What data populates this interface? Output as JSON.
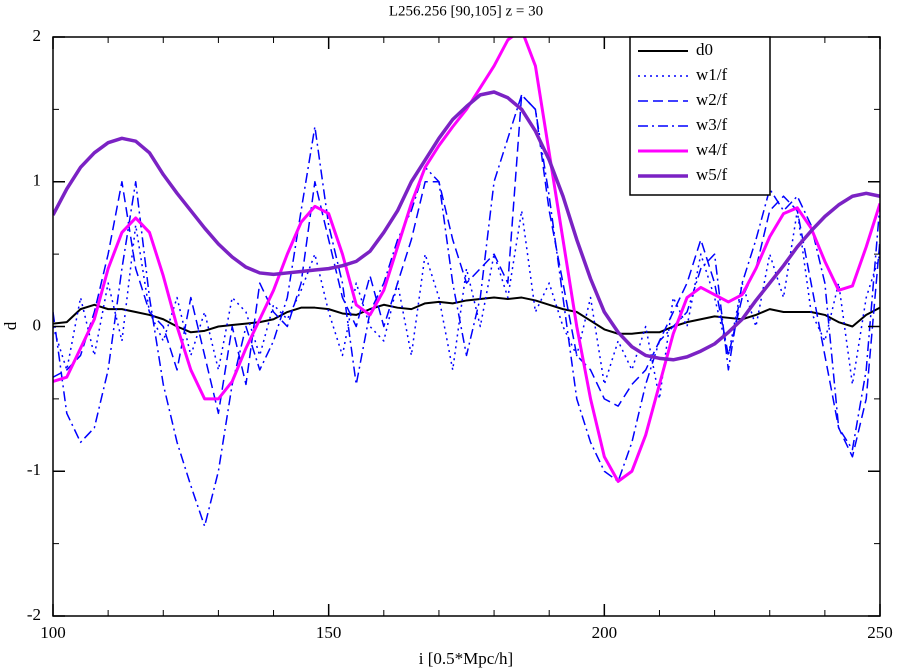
{
  "chart_data": {
    "type": "line",
    "title": "L256.256 [90,105] z = 30",
    "xlabel": "i [0.5*Mpc/h]",
    "ylabel": "d",
    "xlim": [
      100,
      250
    ],
    "ylim": [
      -2,
      2
    ],
    "xticks": [
      100,
      150,
      200,
      250
    ],
    "yticks": [
      -2,
      -1,
      0,
      1,
      2
    ],
    "xminorticks": [
      110,
      120,
      130,
      140,
      160,
      170,
      180,
      190,
      210,
      220,
      230,
      240
    ],
    "yminorticks": [
      -1.5,
      -0.5,
      0.5,
      1.5
    ],
    "legend": "upper right",
    "x": [
      100,
      102.5,
      105,
      107.5,
      110,
      112.5,
      115,
      117.5,
      120,
      122.5,
      125,
      127.5,
      130,
      132.5,
      135,
      137.5,
      140,
      142.5,
      145,
      147.5,
      150,
      152.5,
      155,
      157.5,
      160,
      162.5,
      165,
      167.5,
      170,
      172.5,
      175,
      177.5,
      180,
      182.5,
      185,
      187.5,
      190,
      192.5,
      195,
      197.5,
      200,
      202.5,
      205,
      207.5,
      210,
      212.5,
      215,
      217.5,
      220,
      222.5,
      225,
      227.5,
      230,
      232.5,
      235,
      237.5,
      240,
      242.5,
      245,
      247.5,
      250
    ],
    "series": [
      {
        "name": "d0",
        "color": "#000000",
        "dash": "solid",
        "linewidth": 2,
        "values": [
          0.02,
          0.03,
          0.12,
          0.15,
          0.12,
          0.12,
          0.1,
          0.08,
          0.05,
          0.0,
          -0.04,
          -0.03,
          0.0,
          0.01,
          0.02,
          0.03,
          0.05,
          0.1,
          0.13,
          0.13,
          0.12,
          0.09,
          0.08,
          0.12,
          0.15,
          0.13,
          0.12,
          0.16,
          0.17,
          0.16,
          0.18,
          0.19,
          0.2,
          0.19,
          0.2,
          0.18,
          0.15,
          0.12,
          0.1,
          0.04,
          -0.02,
          -0.05,
          -0.05,
          -0.04,
          -0.04,
          0.0,
          0.03,
          0.05,
          0.07,
          0.06,
          0.05,
          0.08,
          0.12,
          0.1,
          0.1,
          0.1,
          0.08,
          0.03,
          0.0,
          0.08,
          0.13
        ]
      },
      {
        "name": "w1/f",
        "color": "#0000ff",
        "dash": "dotted",
        "linewidth": 1.5,
        "values": [
          0.0,
          -0.3,
          0.2,
          -0.2,
          0.3,
          -0.1,
          0.7,
          0.1,
          -0.1,
          0.2,
          -0.2,
          0.1,
          -0.3,
          0.2,
          0.1,
          -0.2,
          0.15,
          0.05,
          0.25,
          0.5,
          0.1,
          -0.2,
          0.3,
          0.0,
          -0.1,
          0.3,
          -0.2,
          0.5,
          0.2,
          -0.3,
          0.4,
          0.0,
          0.5,
          0.2,
          0.8,
          0.1,
          0.3,
          0.0,
          -0.2,
          0.2,
          -0.4,
          -0.1,
          -0.3,
          0.0,
          -0.5,
          0.2,
          0.0,
          0.5,
          0.2,
          -0.2,
          0.3,
          0.0,
          0.5,
          0.2,
          0.8,
          0.1,
          -0.1,
          0.3,
          -0.4,
          0.2,
          0.5
        ]
      },
      {
        "name": "w2/f",
        "color": "#0000ff",
        "dash": "dashed",
        "linewidth": 1.5,
        "values": [
          -0.35,
          -0.3,
          -0.2,
          0.1,
          0.5,
          1.0,
          0.4,
          0.1,
          0.0,
          -0.3,
          0.2,
          -0.2,
          -0.6,
          0.0,
          -0.4,
          0.3,
          0.1,
          0.0,
          0.3,
          1.0,
          0.6,
          0.2,
          0.0,
          0.35,
          0.0,
          0.3,
          0.6,
          1.0,
          1.0,
          0.6,
          0.3,
          0.4,
          0.5,
          0.3,
          1.6,
          1.5,
          0.8,
          0.3,
          -0.2,
          -0.3,
          -0.5,
          -0.55,
          -0.4,
          -0.3,
          -0.1,
          0.1,
          0.3,
          0.6,
          0.3,
          -0.2,
          0.2,
          0.4,
          0.8,
          0.9,
          0.8,
          0.3,
          -0.2,
          -0.7,
          -0.9,
          -0.5,
          0.6
        ]
      },
      {
        "name": "w3/f",
        "color": "#0000ff",
        "dash": "dashdot",
        "linewidth": 1.5,
        "values": [
          0.1,
          -0.6,
          -0.8,
          -0.7,
          -0.3,
          0.4,
          1.0,
          0.2,
          -0.4,
          -0.8,
          -1.1,
          -1.38,
          -1.0,
          -0.4,
          0.0,
          -0.3,
          -0.1,
          0.2,
          0.8,
          1.38,
          0.7,
          0.3,
          -0.4,
          0.1,
          0.3,
          0.6,
          0.8,
          1.1,
          1.0,
          0.3,
          -0.2,
          0.2,
          1.0,
          1.3,
          1.6,
          1.5,
          0.9,
          0.2,
          -0.5,
          -0.8,
          -1.0,
          -1.07,
          -0.8,
          -0.4,
          -0.1,
          0.0,
          0.1,
          0.4,
          0.5,
          -0.3,
          0.3,
          0.6,
          0.95,
          0.8,
          0.9,
          0.7,
          0.3,
          -0.7,
          -0.85,
          -0.3,
          0.85
        ]
      },
      {
        "name": "w4/f",
        "color": "#ff00ff",
        "dash": "solid",
        "linewidth": 3,
        "values": [
          -0.38,
          -0.35,
          -0.15,
          0.05,
          0.4,
          0.65,
          0.75,
          0.65,
          0.35,
          0.0,
          -0.3,
          -0.5,
          -0.5,
          -0.38,
          -0.15,
          0.05,
          0.25,
          0.5,
          0.72,
          0.83,
          0.78,
          0.5,
          0.15,
          0.08,
          0.25,
          0.55,
          0.85,
          1.1,
          1.25,
          1.38,
          1.5,
          1.65,
          1.8,
          1.98,
          2.05,
          1.8,
          1.2,
          0.6,
          0.0,
          -0.5,
          -0.9,
          -1.07,
          -1.0,
          -0.75,
          -0.4,
          -0.05,
          0.2,
          0.27,
          0.22,
          0.17,
          0.22,
          0.4,
          0.62,
          0.78,
          0.82,
          0.68,
          0.45,
          0.25,
          0.28,
          0.55,
          0.85
        ]
      },
      {
        "name": "w5/f",
        "color": "#7b22c4",
        "dash": "solid",
        "linewidth": 3.5,
        "values": [
          0.77,
          0.95,
          1.1,
          1.2,
          1.27,
          1.3,
          1.28,
          1.2,
          1.05,
          0.92,
          0.8,
          0.68,
          0.57,
          0.48,
          0.41,
          0.37,
          0.36,
          0.37,
          0.38,
          0.39,
          0.4,
          0.42,
          0.45,
          0.52,
          0.65,
          0.8,
          1.0,
          1.15,
          1.3,
          1.43,
          1.52,
          1.6,
          1.62,
          1.58,
          1.5,
          1.35,
          1.15,
          0.9,
          0.6,
          0.33,
          0.1,
          -0.04,
          -0.14,
          -0.2,
          -0.22,
          -0.23,
          -0.21,
          -0.17,
          -0.12,
          -0.04,
          0.05,
          0.18,
          0.3,
          0.42,
          0.55,
          0.66,
          0.76,
          0.84,
          0.9,
          0.92,
          0.9
        ]
      }
    ]
  }
}
